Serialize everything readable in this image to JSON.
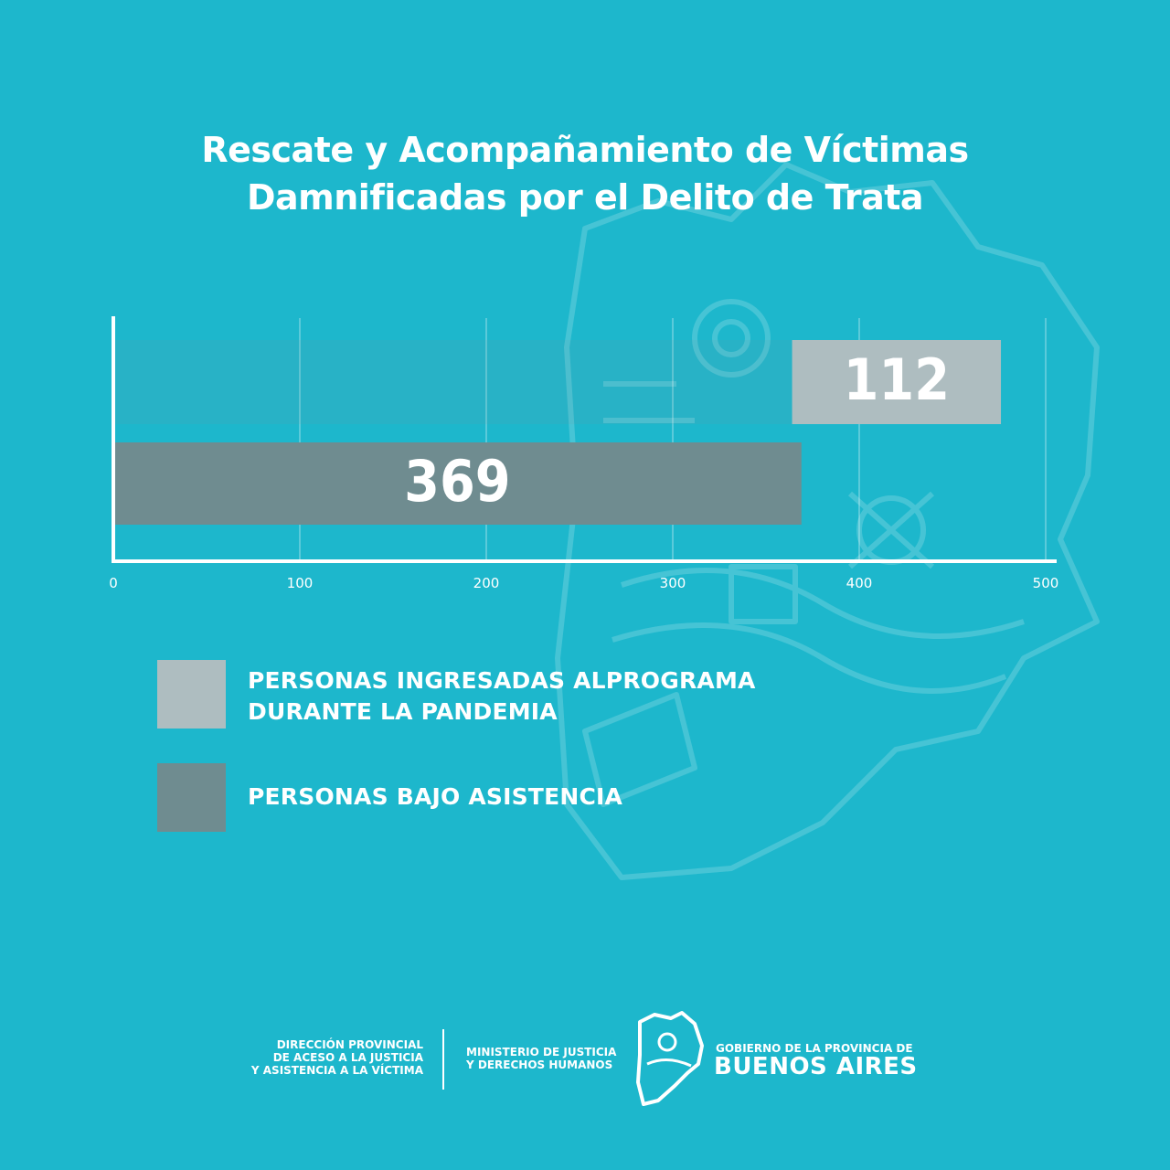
{
  "title_line1": "Rescate y Acompañamiento de Víctimas",
  "title_line2": "Damnificadas por el Delito de Trata",
  "chart_data": {
    "type": "bar",
    "orientation": "horizontal",
    "title": "Rescate y Acompañamiento de Víctimas Damnificadas por el Delito de Trata",
    "xlim": [
      0,
      500
    ],
    "xticks": [
      "0",
      "100",
      "200",
      "300",
      "400",
      "500"
    ],
    "grid": true,
    "series": [
      {
        "name": "PERSONAS INGRESADAS ALPROGRAMA DURANTE LA PANDEMIA",
        "label": "112",
        "start": 364,
        "value": 112,
        "color": "#aebdc0"
      },
      {
        "name": "PERSONAS BAJO ASISTENCIA",
        "label": "369",
        "start": 0,
        "value": 369,
        "color": "#6f8c90"
      }
    ],
    "legend_position": "bottom-left"
  },
  "legend": [
    {
      "label": "PERSONAS INGRESADAS ALPROGRAMA\nDURANTE LA PANDEMIA",
      "color": "#aebdc0"
    },
    {
      "label": "PERSONAS BAJO ASISTENCIA",
      "color": "#6f8c90"
    }
  ],
  "footer": {
    "direccion": "DIRECCIÓN PROVINCIAL\nDE ACESO A LA JUSTICIA\nY ASISTENCIA A LA VÍCTIMA",
    "ministerio": "MINISTERIO DE JUSTICIA\nY DERECHOS HUMANOS",
    "gobierno": "GOBIERNO DE LA PROVINCIA DE",
    "buenos_aires": "BUENOS AIRES"
  },
  "colors": {
    "background": "#1db7cc",
    "text": "#ffffff"
  }
}
